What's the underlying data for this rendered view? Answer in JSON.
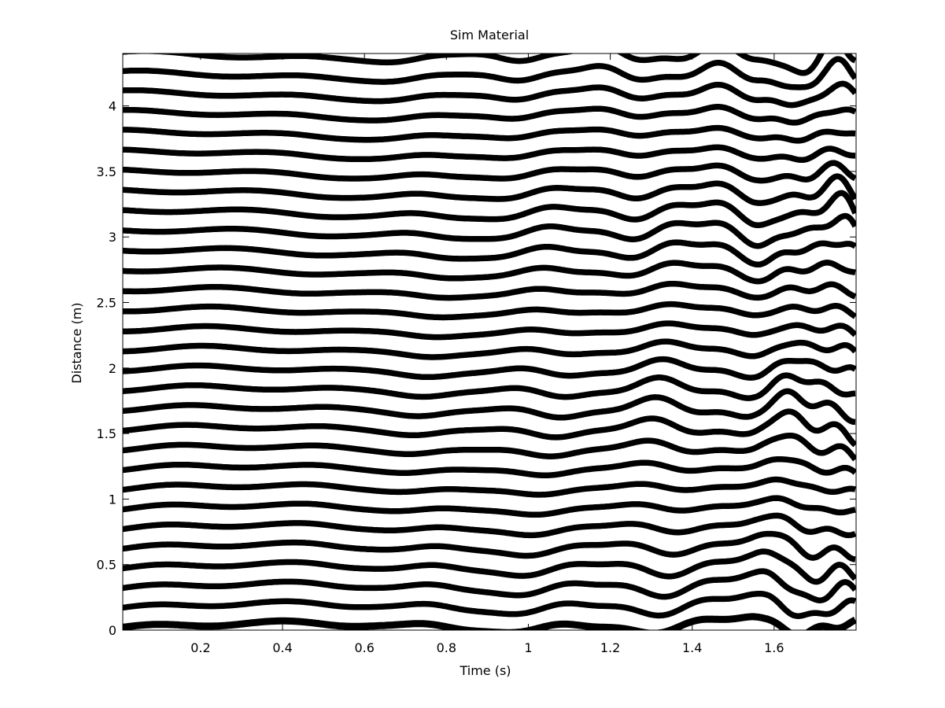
{
  "chart_data": {
    "type": "line",
    "title": "Sim Material",
    "xlabel": "Time (s)",
    "ylabel": "Distance (m)",
    "xlim": [
      0.01,
      1.8
    ],
    "ylim": [
      0,
      4.4
    ],
    "xticks": [
      0.2,
      0.4,
      0.6,
      0.8,
      1,
      1.2,
      1.4,
      1.6
    ],
    "yticks": [
      0,
      0.5,
      1,
      1.5,
      2,
      2.5,
      3,
      3.5,
      4
    ],
    "xtick_labels": [
      "0.2",
      "0.4",
      "0.6",
      "0.8",
      "1",
      "1.2",
      "1.4",
      "1.6"
    ],
    "ytick_labels": [
      "0",
      "0.5",
      "1",
      "1.5",
      "2",
      "2.5",
      "3",
      "3.5",
      "4"
    ],
    "grid": false,
    "legend": "none",
    "trace_style": "wiggle traces, black, heavily filled",
    "trace_count": 30,
    "trace_spacing_m": 0.15,
    "trace_offsets_m": [
      0.03,
      0.18,
      0.33,
      0.48,
      0.63,
      0.78,
      0.93,
      1.08,
      1.23,
      1.38,
      1.53,
      1.68,
      1.83,
      1.98,
      2.13,
      2.28,
      2.43,
      2.58,
      2.73,
      2.88,
      3.03,
      3.18,
      3.33,
      3.48,
      3.63,
      3.78,
      3.93,
      4.08,
      4.23,
      4.38
    ]
  }
}
